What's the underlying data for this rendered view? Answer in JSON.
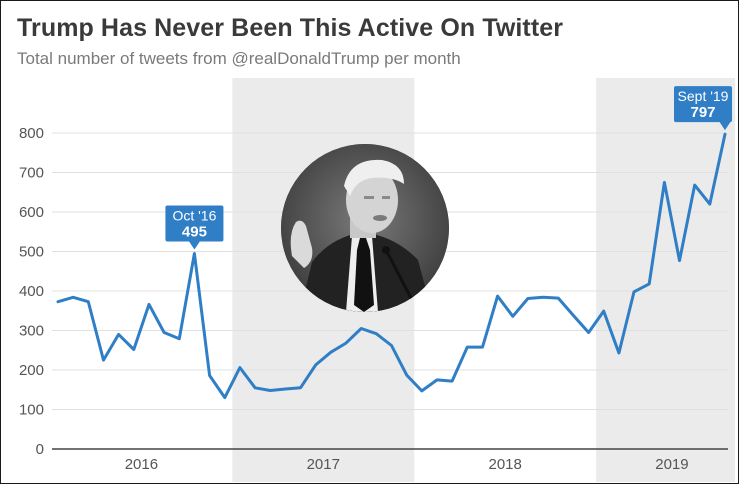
{
  "chart_data": {
    "type": "line",
    "title": "Trump Has Never Been This Active On Twitter",
    "subtitle": "Total number of tweets from @realDonaldTrump per month",
    "xlabel": "",
    "ylabel": "",
    "ylim": [
      0,
      800
    ],
    "yticks": [
      0,
      100,
      200,
      300,
      400,
      500,
      600,
      700,
      800
    ],
    "year_labels": [
      "2016",
      "2017",
      "2018",
      "2019"
    ],
    "grid": true,
    "series": [
      {
        "name": "Tweets per month",
        "color": "#2f7ec6",
        "x": [
          "Jan 2016",
          "Feb 2016",
          "Mar 2016",
          "Apr 2016",
          "May 2016",
          "Jun 2016",
          "Jul 2016",
          "Aug 2016",
          "Sep 2016",
          "Oct 2016",
          "Nov 2016",
          "Dec 2016",
          "Jan 2017",
          "Feb 2017",
          "Mar 2017",
          "Apr 2017",
          "May 2017",
          "Jun 2017",
          "Jul 2017",
          "Aug 2017",
          "Sep 2017",
          "Oct 2017",
          "Nov 2017",
          "Dec 2017",
          "Jan 2018",
          "Feb 2018",
          "Mar 2018",
          "Apr 2018",
          "May 2018",
          "Jun 2018",
          "Jul 2018",
          "Aug 2018",
          "Sep 2018",
          "Oct 2018",
          "Nov 2018",
          "Dec 2018",
          "Jan 2019",
          "Feb 2019",
          "Mar 2019",
          "Apr 2019",
          "May 2019",
          "Jun 2019",
          "Jul 2019",
          "Aug 2019",
          "Sep 2019"
        ],
        "values": [
          373,
          384,
          373,
          225,
          290,
          252,
          366,
          295,
          279,
          495,
          186,
          130,
          206,
          155,
          148,
          152,
          155,
          213,
          245,
          268,
          305,
          292,
          262,
          187,
          147,
          175,
          172,
          258,
          258,
          387,
          336,
          381,
          384,
          382,
          338,
          295,
          349,
          243,
          398,
          418,
          675,
          477,
          668,
          620,
          797
        ]
      }
    ],
    "callouts": [
      {
        "label": "Oct '16",
        "value": "495",
        "index": 9
      },
      {
        "label": "Sept '19",
        "value": "797",
        "index": 44
      }
    ],
    "image_description": "Circular grayscale photo of Donald Trump"
  },
  "colors": {
    "line": "#2f7ec6",
    "callout_bg": "#2f7ec6",
    "shade": "#ebebeb",
    "grid": "#e0e0e0",
    "axis": "#444444"
  }
}
